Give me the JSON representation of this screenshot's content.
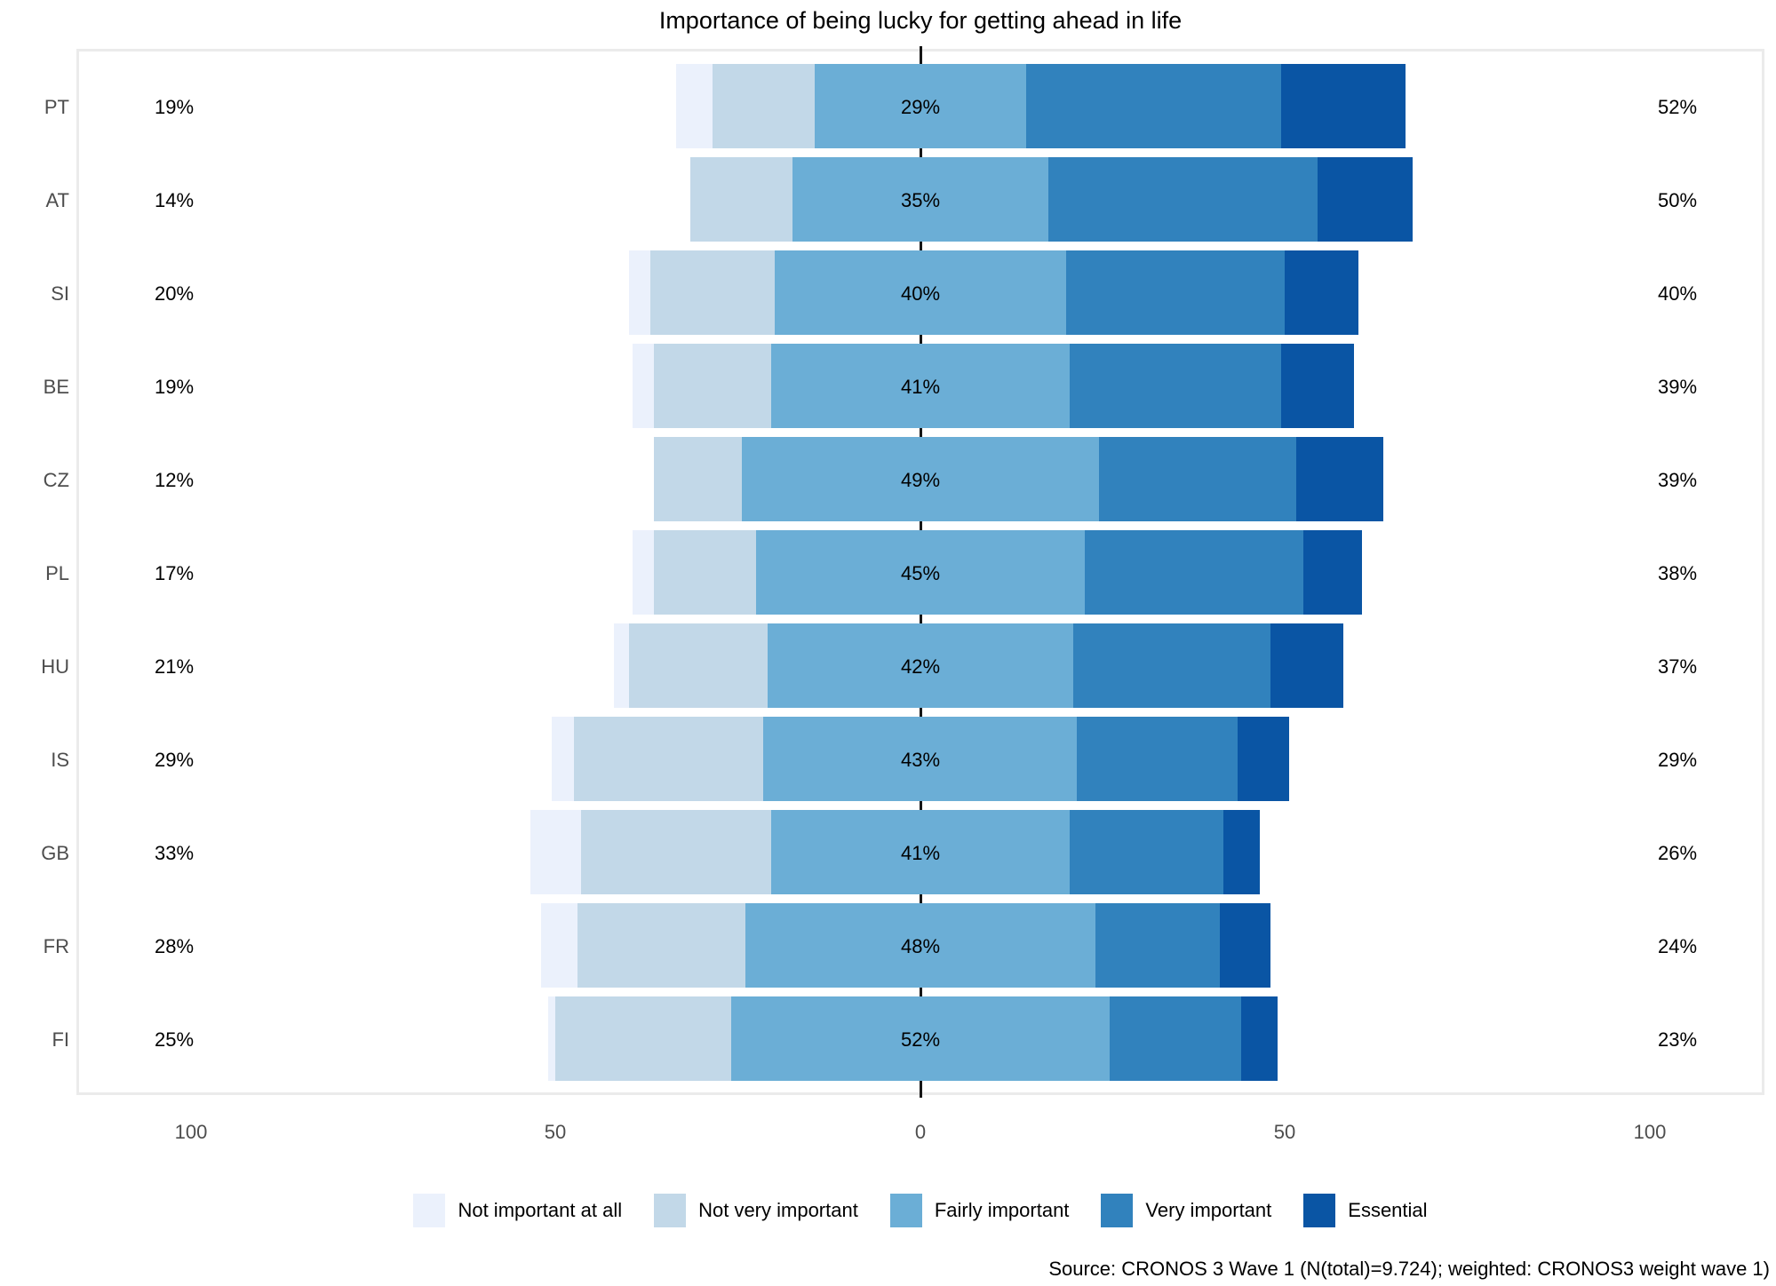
{
  "ui": {
    "title": "Importance of being lucky for getting ahead in life",
    "source_note": "Source: CRONOS 3 Wave 1 (N(total)=9.724); weighted: CRONOS3 weight wave 1)",
    "x_axis_ticks": [
      "100",
      "50",
      "0",
      "50",
      "100"
    ]
  },
  "chart_data": {
    "type": "bar",
    "variant": "diverging-stacked-likert",
    "title": "Importance of being lucky for getting ahead in life",
    "categories": [
      "PT",
      "AT",
      "SI",
      "BE",
      "CZ",
      "PL",
      "HU",
      "IS",
      "GB",
      "FR",
      "FI"
    ],
    "series": [
      {
        "name": "Not important at all",
        "color": "#EBF1FC",
        "values": [
          5,
          0,
          3,
          3,
          0,
          3,
          2,
          3,
          7,
          5,
          1
        ]
      },
      {
        "name": "Not very important",
        "color": "#C2D8E8",
        "values": [
          14,
          14,
          17,
          16,
          12,
          14,
          19,
          26,
          26,
          23,
          24
        ]
      },
      {
        "name": "Fairly important",
        "color": "#6BAED6",
        "values": [
          29,
          35,
          40,
          41,
          49,
          45,
          42,
          43,
          41,
          48,
          52
        ]
      },
      {
        "name": "Very important",
        "color": "#3182BD",
        "values": [
          35,
          37,
          30,
          29,
          27,
          30,
          27,
          22,
          21,
          17,
          18
        ]
      },
      {
        "name": "Essential",
        "color": "#0A55A4",
        "values": [
          17,
          13,
          10,
          10,
          12,
          8,
          10,
          7,
          5,
          7,
          5
        ]
      }
    ],
    "left_total_labels": [
      "19%",
      "14%",
      "20%",
      "19%",
      "12%",
      "17%",
      "21%",
      "29%",
      "33%",
      "28%",
      "25%"
    ],
    "center_labels": [
      "29%",
      "35%",
      "40%",
      "41%",
      "49%",
      "45%",
      "42%",
      "43%",
      "41%",
      "48%",
      "52%"
    ],
    "right_total_labels": [
      "52%",
      "50%",
      "40%",
      "39%",
      "39%",
      "38%",
      "37%",
      "29%",
      "26%",
      "24%",
      "23%"
    ],
    "x_axis": {
      "tick_values": [
        100,
        50,
        0,
        50,
        100
      ],
      "center_zero": true,
      "grid": false
    },
    "legend_position": "bottom"
  }
}
